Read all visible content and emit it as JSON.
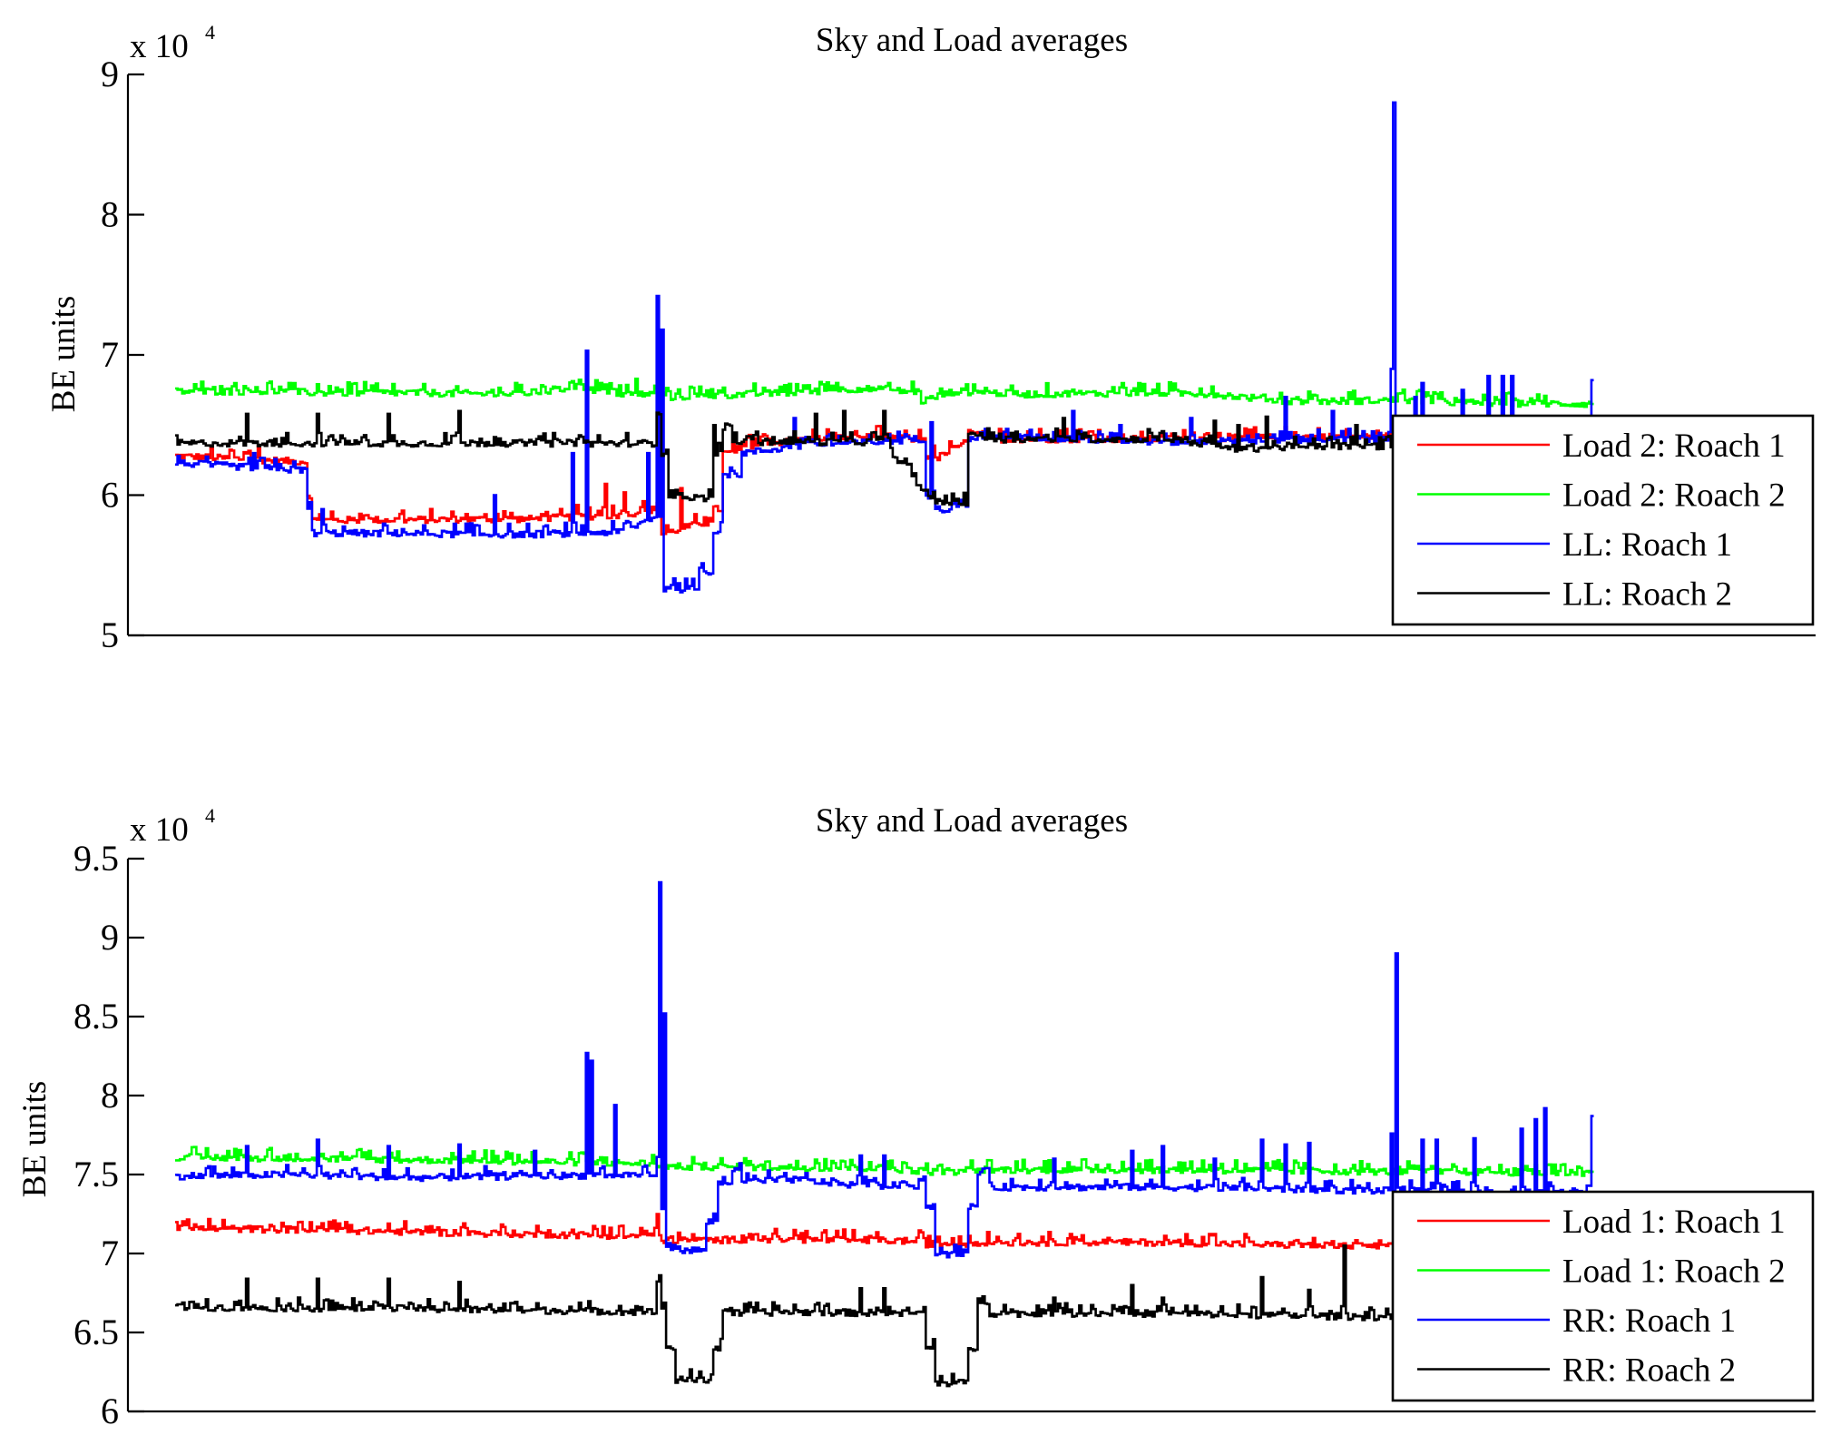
{
  "chart_data": [
    {
      "type": "line",
      "title": "Sky and Load averages",
      "xlabel": "",
      "ylabel": "BE units",
      "y_multiplier_label": "x 10",
      "y_multiplier_exponent": "4",
      "ylim": [
        5,
        9
      ],
      "xlim": [
        -20,
        695
      ],
      "yticks": [
        5,
        6,
        7,
        8,
        9
      ],
      "ytick_labels": [
        "5",
        "6",
        "7",
        "8",
        "9"
      ],
      "grid": false,
      "legend_position": "lower-right",
      "series": [
        {
          "name": "Load 2: Roach 1",
          "color": "#ff0000",
          "levels": [
            [
              0,
              6.28
            ],
            [
              50,
              6.24
            ],
            [
              56,
              6.0
            ],
            [
              58,
              5.82
            ],
            [
              150,
              5.83
            ],
            [
              190,
              5.86
            ],
            [
              203,
              5.9
            ],
            [
              206,
              5.72
            ],
            [
              222,
              5.8
            ],
            [
              228,
              5.9
            ],
            [
              232,
              6.3
            ],
            [
              240,
              6.35
            ],
            [
              270,
              6.4
            ],
            [
              300,
              6.42
            ],
            [
              312,
              6.4
            ],
            [
              318,
              6.28
            ],
            [
              322,
              6.26
            ],
            [
              332,
              6.35
            ],
            [
              336,
              6.45
            ],
            [
              345,
              6.4
            ],
            [
              420,
              6.4
            ],
            [
              500,
              6.42
            ],
            [
              600,
              6.42
            ]
          ],
          "spikes": [
            [
              35,
              6.35
            ],
            [
              190,
              6.02
            ],
            [
              170,
              5.93
            ],
            [
              182,
              6.08
            ],
            [
              214,
              6.05
            ]
          ]
        },
        {
          "name": "Load 2: Roach 2",
          "color": "#00ff00",
          "levels": [
            [
              0,
              6.74
            ],
            [
              40,
              6.74
            ],
            [
              60,
              6.73
            ],
            [
              100,
              6.73
            ],
            [
              140,
              6.72
            ],
            [
              160,
              6.74
            ],
            [
              170,
              6.78
            ],
            [
              185,
              6.72
            ],
            [
              205,
              6.72
            ],
            [
              210,
              6.7
            ],
            [
              260,
              6.73
            ],
            [
              290,
              6.76
            ],
            [
              310,
              6.74
            ],
            [
              316,
              6.67
            ],
            [
              330,
              6.74
            ],
            [
              360,
              6.72
            ],
            [
              420,
              6.73
            ],
            [
              440,
              6.72
            ],
            [
              470,
              6.67
            ],
            [
              490,
              6.67
            ],
            [
              520,
              6.68
            ],
            [
              540,
              6.66
            ],
            [
              600,
              6.65
            ]
          ],
          "spikes": [
            [
              48,
              6.8
            ],
            [
              180,
              6.8
            ],
            [
              195,
              6.83
            ],
            [
              280,
              6.8
            ],
            [
              302,
              6.8
            ]
          ]
        },
        {
          "name": "LL: Roach 1",
          "color": "#0000ff",
          "levels": [
            [
              0,
              6.23
            ],
            [
              50,
              6.18
            ],
            [
              56,
              5.9
            ],
            [
              58,
              5.73
            ],
            [
              150,
              5.72
            ],
            [
              190,
              5.74
            ],
            [
              203,
              5.85
            ],
            [
              206,
              5.33
            ],
            [
              216,
              5.33
            ],
            [
              222,
              5.45
            ],
            [
              228,
              5.75
            ],
            [
              232,
              6.15
            ],
            [
              240,
              6.3
            ],
            [
              270,
              6.36
            ],
            [
              300,
              6.38
            ],
            [
              312,
              6.4
            ],
            [
              318,
              6.0
            ],
            [
              322,
              5.9
            ],
            [
              330,
              5.9
            ],
            [
              336,
              6.4
            ],
            [
              345,
              6.42
            ],
            [
              420,
              6.38
            ],
            [
              500,
              6.4
            ],
            [
              600,
              6.4
            ]
          ],
          "spikes": [
            [
              33,
              6.3
            ],
            [
              62,
              5.9
            ],
            [
              135,
              6.0
            ],
            [
              168,
              6.3
            ],
            [
              174,
              7.03
            ],
            [
              200,
              6.3
            ],
            [
              204,
              7.42
            ],
            [
              206,
              7.18
            ],
            [
              262,
              6.55
            ],
            [
              320,
              6.52
            ],
            [
              380,
              6.6
            ],
            [
              400,
              6.5
            ],
            [
              430,
              6.55
            ],
            [
              470,
              6.7
            ],
            [
              490,
              6.6
            ],
            [
              516,
              8.8
            ],
            [
              515,
              6.9
            ],
            [
              525,
              6.7
            ],
            [
              528,
              6.8
            ],
            [
              545,
              6.75
            ],
            [
              556,
              6.85
            ],
            [
              562,
              6.85
            ],
            [
              566,
              6.85
            ],
            [
              600,
              6.82
            ]
          ]
        },
        {
          "name": "LL: Roach 2",
          "color": "#000000",
          "levels": [
            [
              0,
              6.37
            ],
            [
              200,
              6.37
            ],
            [
              204,
              6.6
            ],
            [
              206,
              6.3
            ],
            [
              209,
              6.0
            ],
            [
              222,
              5.98
            ],
            [
              228,
              6.3
            ],
            [
              232,
              6.48
            ],
            [
              236,
              6.38
            ],
            [
              300,
              6.38
            ],
            [
              318,
              6.0
            ],
            [
              322,
              5.95
            ],
            [
              332,
              5.95
            ],
            [
              336,
              6.45
            ],
            [
              345,
              6.4
            ],
            [
              420,
              6.4
            ],
            [
              450,
              6.33
            ],
            [
              490,
              6.35
            ],
            [
              600,
              6.35
            ]
          ],
          "spikes": [
            [
              30,
              6.58
            ],
            [
              60,
              6.58
            ],
            [
              90,
              6.58
            ],
            [
              120,
              6.6
            ],
            [
              228,
              6.5
            ],
            [
              271,
              6.58
            ],
            [
              283,
              6.6
            ],
            [
              300,
              6.6
            ],
            [
              376,
              6.55
            ],
            [
              440,
              6.53
            ],
            [
              450,
              6.5
            ],
            [
              462,
              6.56
            ],
            [
              500,
              6.5
            ],
            [
              516,
              6.55
            ]
          ]
        }
      ]
    },
    {
      "type": "line",
      "title": "Sky and Load averages",
      "xlabel": "",
      "ylabel": "BE units",
      "y_multiplier_label": "x 10",
      "y_multiplier_exponent": "4",
      "ylim": [
        6,
        9.5
      ],
      "xlim": [
        -20,
        695
      ],
      "yticks": [
        6,
        6.5,
        7,
        7.5,
        8,
        8.5,
        9,
        9.5
      ],
      "ytick_labels": [
        "6",
        "6.5",
        "7",
        "7.5",
        "8",
        "8.5",
        "9",
        "9.5"
      ],
      "grid": false,
      "legend_position": "lower-right",
      "series": [
        {
          "name": "Load 1: Roach 1",
          "color": "#ff0000",
          "levels": [
            [
              0,
              7.16
            ],
            [
              60,
              7.15
            ],
            [
              120,
              7.13
            ],
            [
              200,
              7.11
            ],
            [
              206,
              7.08
            ],
            [
              250,
              7.09
            ],
            [
              310,
              7.08
            ],
            [
              318,
              7.06
            ],
            [
              330,
              7.06
            ],
            [
              336,
              7.07
            ],
            [
              420,
              7.07
            ],
            [
              480,
              7.05
            ],
            [
              600,
              7.03
            ]
          ],
          "spikes": [
            [
              204,
              7.25
            ]
          ]
        },
        {
          "name": "Load 1: Roach 2",
          "color": "#00ff00",
          "levels": [
            [
              0,
              7.61
            ],
            [
              60,
              7.6
            ],
            [
              120,
              7.59
            ],
            [
              200,
              7.57
            ],
            [
              210,
              7.55
            ],
            [
              300,
              7.54
            ],
            [
              318,
              7.52
            ],
            [
              330,
              7.51
            ],
            [
              340,
              7.53
            ],
            [
              420,
              7.53
            ],
            [
              500,
              7.52
            ],
            [
              600,
              7.51
            ]
          ],
          "spikes": []
        },
        {
          "name": "RR: Roach 1",
          "color": "#0000ff",
          "levels": [
            [
              0,
              7.49
            ],
            [
              50,
              7.5
            ],
            [
              100,
              7.48
            ],
            [
              150,
              7.49
            ],
            [
              200,
              7.5
            ],
            [
              204,
              7.62
            ],
            [
              206,
              7.25
            ],
            [
              208,
              7.03
            ],
            [
              220,
              7.02
            ],
            [
              225,
              7.2
            ],
            [
              230,
              7.45
            ],
            [
              236,
              7.52
            ],
            [
              240,
              7.45
            ],
            [
              260,
              7.47
            ],
            [
              290,
              7.43
            ],
            [
              312,
              7.43
            ],
            [
              318,
              7.3
            ],
            [
              322,
              7.0
            ],
            [
              332,
              6.99
            ],
            [
              336,
              7.3
            ],
            [
              340,
              7.52
            ],
            [
              345,
              7.42
            ],
            [
              420,
              7.42
            ],
            [
              500,
              7.4
            ],
            [
              600,
              7.38
            ]
          ],
          "spikes": [
            [
              30,
              7.68
            ],
            [
              60,
              7.72
            ],
            [
              90,
              7.68
            ],
            [
              120,
              7.69
            ],
            [
              152,
              7.65
            ],
            [
              174,
              8.27
            ],
            [
              176,
              8.22
            ],
            [
              186,
              7.94
            ],
            [
              205,
              9.35
            ],
            [
              207,
              8.52
            ],
            [
              290,
              7.62
            ],
            [
              300,
              7.62
            ],
            [
              372,
              7.6
            ],
            [
              405,
              7.65
            ],
            [
              418,
              7.68
            ],
            [
              440,
              7.6
            ],
            [
              460,
              7.72
            ],
            [
              470,
              7.69
            ],
            [
              480,
              7.7
            ],
            [
              515,
              7.76
            ],
            [
              517,
              8.9
            ],
            [
              528,
              7.72
            ],
            [
              534,
              7.72
            ],
            [
              550,
              7.73
            ],
            [
              570,
              7.79
            ],
            [
              576,
              7.85
            ],
            [
              580,
              7.92
            ],
            [
              600,
              7.87
            ]
          ]
        },
        {
          "name": "RR: Roach 2",
          "color": "#000000",
          "levels": [
            [
              0,
              6.66
            ],
            [
              100,
              6.65
            ],
            [
              200,
              6.63
            ],
            [
              204,
              6.82
            ],
            [
              206,
              6.65
            ],
            [
              208,
              6.4
            ],
            [
              212,
              6.2
            ],
            [
              224,
              6.2
            ],
            [
              228,
              6.4
            ],
            [
              232,
              6.65
            ],
            [
              236,
              6.62
            ],
            [
              260,
              6.63
            ],
            [
              312,
              6.62
            ],
            [
              318,
              6.4
            ],
            [
              322,
              6.18
            ],
            [
              332,
              6.18
            ],
            [
              336,
              6.4
            ],
            [
              340,
              6.7
            ],
            [
              345,
              6.62
            ],
            [
              420,
              6.62
            ],
            [
              500,
              6.6
            ],
            [
              600,
              6.58
            ]
          ],
          "spikes": [
            [
              30,
              6.84
            ],
            [
              60,
              6.84
            ],
            [
              90,
              6.84
            ],
            [
              120,
              6.82
            ],
            [
              290,
              6.78
            ],
            [
              300,
              6.78
            ],
            [
              372,
              6.72
            ],
            [
              405,
              6.8
            ],
            [
              418,
              6.72
            ],
            [
              460,
              6.85
            ],
            [
              480,
              6.77
            ],
            [
              495,
              7.05
            ]
          ]
        }
      ]
    }
  ]
}
